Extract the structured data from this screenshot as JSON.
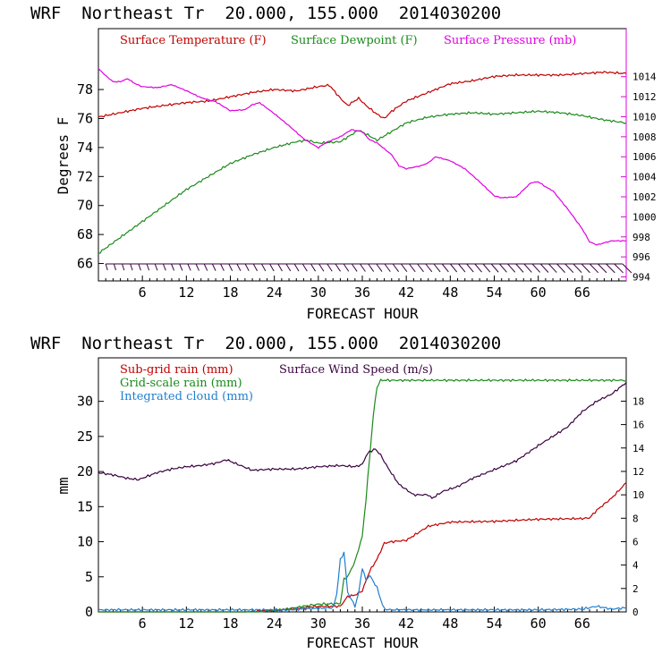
{
  "chart_data": [
    {
      "type": "line",
      "title": "WRF  Northeast Tr  20.000, 155.000  2014030200",
      "xlabel": "FORECAST HOUR",
      "ylabel": "Degrees F",
      "xlim": [
        0,
        72
      ],
      "ylim": [
        64.8,
        82.2
      ],
      "y2lim": [
        993.6,
        1018.8
      ],
      "x_ticks": [
        "6",
        "12",
        "18",
        "24",
        "30",
        "36",
        "42",
        "48",
        "54",
        "60",
        "66"
      ],
      "y_ticks": [
        "66",
        "68",
        "70",
        "72",
        "74",
        "76",
        "78"
      ],
      "y2_ticks": [
        "994",
        "996",
        "998",
        "1000",
        "1002",
        "1004",
        "1006",
        "1008",
        "1010",
        "1012",
        "1014"
      ],
      "series": [
        {
          "name": "Surface Temperature (F)",
          "color": "#c00000",
          "axis": "left",
          "x": [
            0,
            3,
            6,
            9,
            12,
            15,
            18,
            21,
            24,
            27,
            30,
            31.5,
            33,
            34,
            35.5,
            36.5,
            38,
            39,
            40,
            42,
            45,
            48,
            51,
            54,
            57,
            60,
            63,
            66,
            69,
            72
          ],
          "y": [
            76.1,
            76.4,
            76.7,
            76.9,
            77.1,
            77.2,
            77.5,
            77.8,
            78.0,
            77.9,
            78.2,
            78.3,
            77.4,
            76.9,
            77.4,
            76.9,
            76.3,
            76.0,
            76.5,
            77.2,
            77.8,
            78.4,
            78.6,
            78.9,
            79.0,
            79.0,
            79.0,
            79.1,
            79.2,
            79.1
          ]
        },
        {
          "name": "Surface Dewpoint (F)",
          "color": "#1a8a1a",
          "axis": "left",
          "x": [
            0,
            3,
            6,
            9,
            12,
            15,
            18,
            21,
            24,
            27,
            28.5,
            30,
            33,
            35.5,
            37,
            38,
            40,
            42,
            45,
            48,
            51,
            54,
            57,
            60,
            63,
            66,
            69,
            72
          ],
          "y": [
            66.7,
            67.8,
            68.9,
            70.0,
            71.1,
            72.0,
            72.9,
            73.5,
            74.0,
            74.4,
            74.5,
            74.3,
            74.4,
            75.2,
            74.8,
            74.5,
            75.1,
            75.7,
            76.1,
            76.3,
            76.4,
            76.3,
            76.4,
            76.5,
            76.4,
            76.2,
            75.9,
            75.7
          ]
        },
        {
          "name": "Surface Pressure (mb)",
          "color": "#e000e0",
          "axis": "right",
          "x": [
            0,
            1,
            2,
            3,
            4,
            5,
            6,
            8,
            10,
            12,
            14,
            16,
            18,
            20,
            21,
            22,
            24,
            26,
            28,
            30,
            31,
            33,
            34.5,
            36,
            37,
            38,
            39,
            40,
            41,
            42,
            44,
            45,
            46,
            48,
            50,
            52,
            54,
            55,
            57,
            58,
            59,
            60,
            61,
            62,
            64,
            66,
            67,
            68,
            70,
            72
          ],
          "y": [
            1014.8,
            1014.1,
            1013.5,
            1013.5,
            1013.8,
            1013.3,
            1013.0,
            1012.9,
            1013.2,
            1012.6,
            1011.9,
            1011.5,
            1010.6,
            1010.7,
            1011.2,
            1011.4,
            1010.3,
            1009.1,
            1007.8,
            1006.9,
            1007.4,
            1008.0,
            1008.7,
            1008.5,
            1007.7,
            1007.4,
            1006.8,
            1006.2,
            1005.1,
            1004.8,
            1005.1,
            1005.4,
            1006.0,
            1005.6,
            1004.8,
            1003.5,
            1002.1,
            1001.9,
            1002.0,
            1002.7,
            1003.4,
            1003.5,
            1003.0,
            1002.6,
            1000.8,
            998.8,
            997.5,
            997.2,
            997.6,
            997.6
          ]
        }
      ],
      "wind_barbs": {
        "color": "#3a0040",
        "x_start": 1,
        "x_end": 71.5,
        "count": 64
      }
    },
    {
      "type": "line",
      "title": "WRF  Northeast Tr  20.000, 155.000  2014030200",
      "xlabel": "FORECAST HOUR",
      "ylabel": "mm",
      "xlim": [
        0,
        72
      ],
      "ylim": [
        0,
        36.2
      ],
      "y2lim": [
        0,
        21.7
      ],
      "x_ticks": [
        "6",
        "12",
        "18",
        "24",
        "30",
        "36",
        "42",
        "48",
        "54",
        "60",
        "66"
      ],
      "y_ticks": [
        "0",
        "5",
        "10",
        "15",
        "20",
        "25",
        "30"
      ],
      "y2_ticks": [
        "0",
        "2",
        "4",
        "6",
        "8",
        "10",
        "12",
        "14",
        "16",
        "18"
      ],
      "series": [
        {
          "name": "Sub-grid rain (mm)",
          "color": "#c00000",
          "axis": "left",
          "x": [
            0,
            20,
            24,
            27,
            30,
            33,
            34,
            35,
            36,
            37,
            38,
            39,
            40,
            42,
            45,
            48,
            54,
            60,
            66,
            67,
            68,
            70,
            72
          ],
          "y": [
            0,
            0,
            0.2,
            0.5,
            0.8,
            0.8,
            2.2,
            2.4,
            3.0,
            5.8,
            7.5,
            9.8,
            10.0,
            10.2,
            12.2,
            12.8,
            12.9,
            13.2,
            13.3,
            13.4,
            14.5,
            16.2,
            18.4
          ]
        },
        {
          "name": "Grid-scale rain (mm)",
          "color": "#1a8a1a",
          "axis": "left",
          "x": [
            0,
            22,
            25,
            28,
            30,
            33,
            33.5,
            34,
            35,
            36,
            36.5,
            37.5,
            38,
            38.5,
            40,
            48,
            60,
            72
          ],
          "y": [
            0,
            0,
            0.3,
            0.8,
            1.1,
            1.2,
            4.7,
            5.0,
            7.2,
            10.8,
            16.0,
            28.0,
            32.0,
            33.0,
            33.0,
            33.0,
            33.0,
            33.0
          ]
        },
        {
          "name": "Integrated cloud (mm)",
          "color": "#1e7fd0",
          "axis": "left",
          "x": [
            0,
            20,
            26,
            30,
            32,
            32.5,
            33,
            33.5,
            34,
            35,
            35.5,
            36,
            36.5,
            37,
            38,
            38.5,
            39,
            40,
            48,
            60,
            66,
            68,
            70,
            72
          ],
          "y": [
            0.3,
            0.3,
            0.3,
            0.5,
            0.6,
            2.5,
            7.4,
            8.5,
            2.8,
            0.8,
            2.7,
            6.3,
            4.5,
            5.2,
            3.5,
            1.8,
            0.4,
            0.3,
            0.3,
            0.3,
            0.4,
            0.8,
            0.4,
            0.6
          ]
        },
        {
          "name": "Surface Wind Speed (m/s)",
          "color": "#3a0040",
          "axis": "right",
          "x": [
            0,
            2,
            4,
            5.5,
            8,
            10,
            12,
            14,
            16,
            17.5,
            19,
            21,
            24,
            27,
            30,
            33,
            35,
            36,
            36.5,
            37,
            37.8,
            38.5,
            39.5,
            41,
            43,
            45,
            45.5,
            47,
            49,
            51,
            53,
            55,
            57,
            60,
            62,
            64,
            66,
            68,
            70,
            72
          ],
          "y": [
            11.9,
            11.7,
            11.4,
            11.3,
            11.9,
            12.2,
            12.4,
            12.5,
            12.7,
            13.0,
            12.6,
            12.1,
            12.2,
            12.2,
            12.4,
            12.5,
            12.4,
            12.6,
            13.3,
            13.7,
            13.9,
            13.4,
            12.3,
            10.9,
            10.0,
            10.0,
            9.7,
            10.3,
            10.7,
            11.4,
            11.9,
            12.4,
            12.9,
            14.2,
            15.0,
            15.8,
            17.1,
            18.0,
            18.6,
            19.6
          ]
        }
      ]
    }
  ]
}
